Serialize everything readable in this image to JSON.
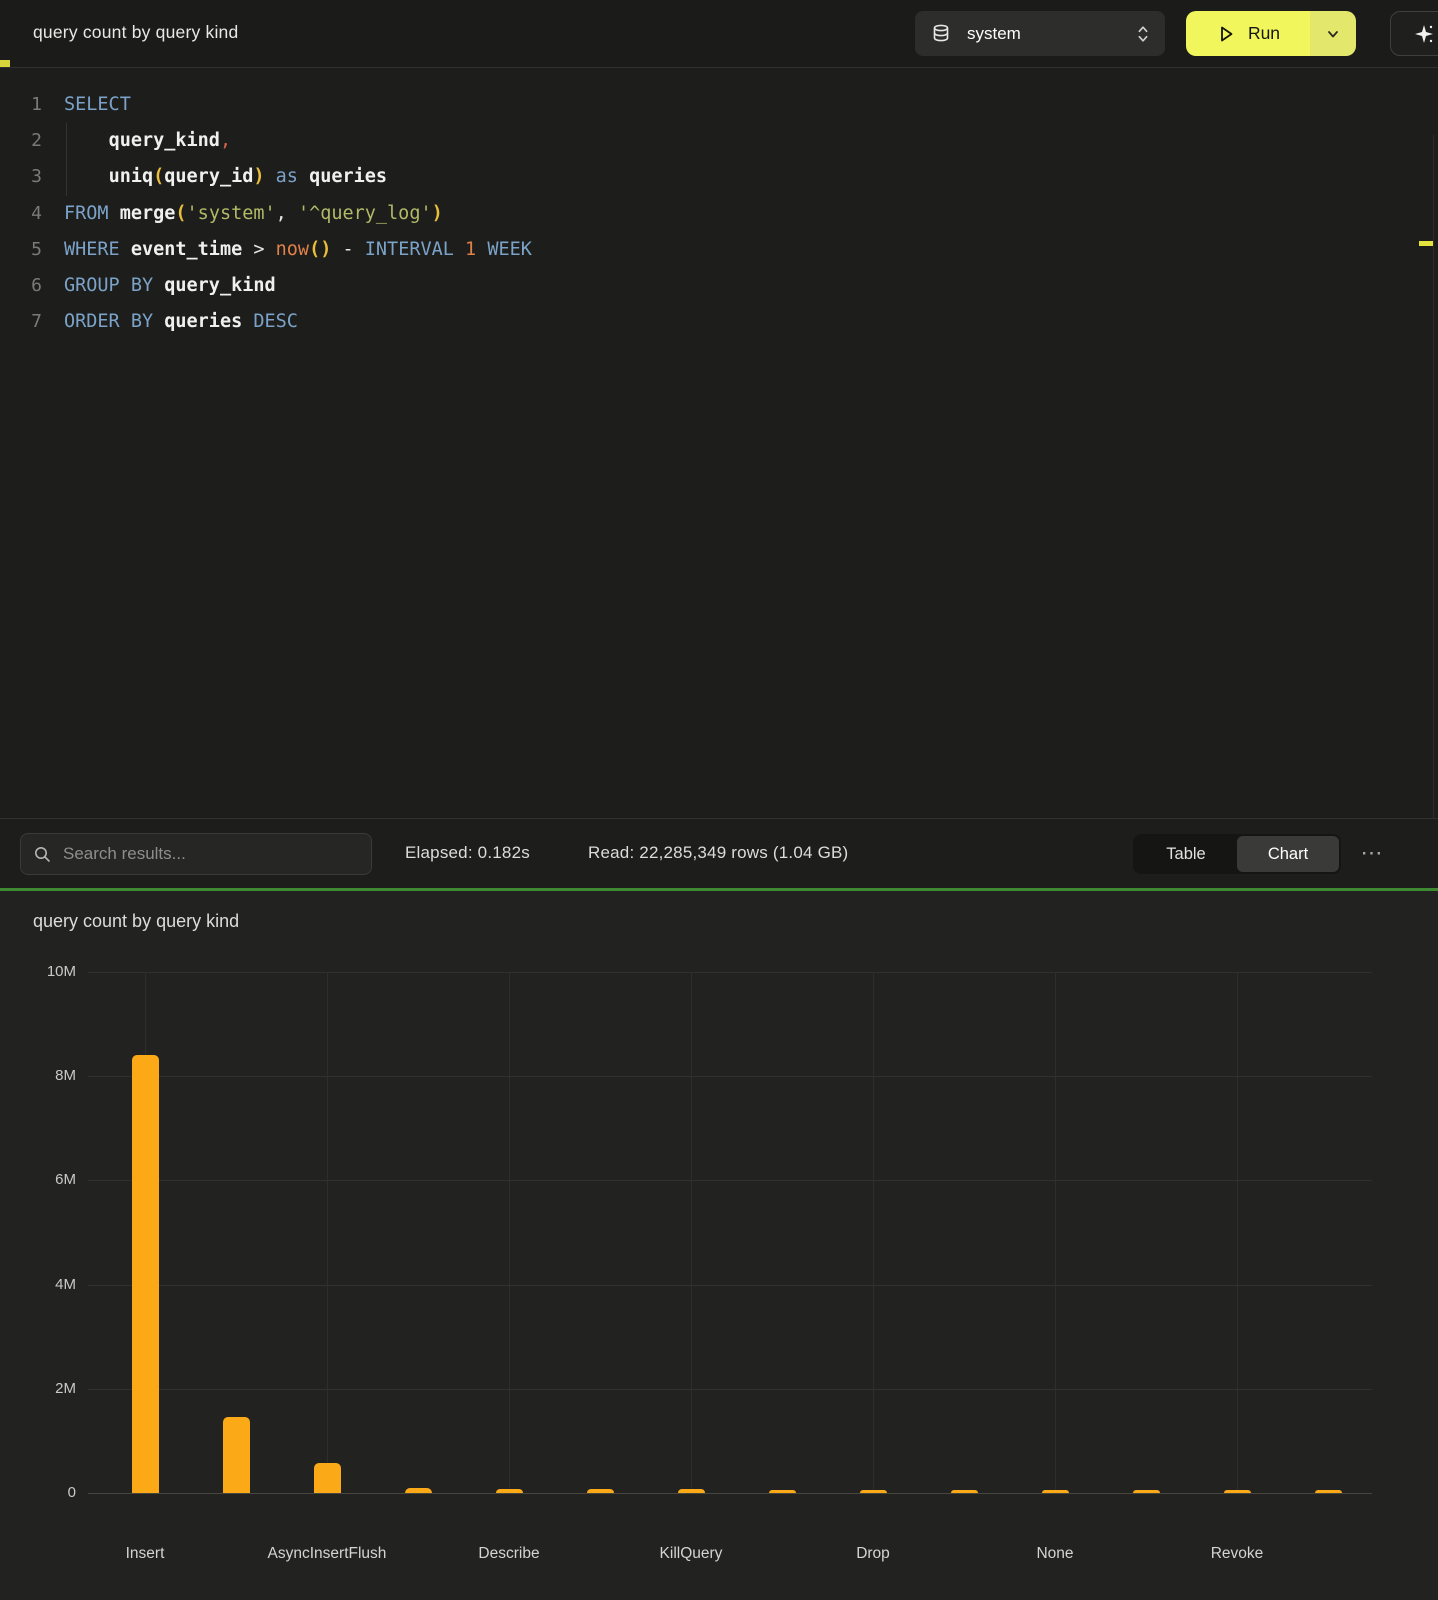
{
  "topbar": {
    "title": "query count by query kind",
    "database_selector": {
      "selected": "system"
    },
    "run_button": {
      "label": "Run"
    },
    "colors": {
      "run_main": "#f0f65c",
      "run_dropdown": "#e3e86c"
    }
  },
  "editor": {
    "lines": [
      {
        "num": "1",
        "tokens": [
          {
            "c": "kw",
            "t": "SELECT"
          }
        ]
      },
      {
        "num": "2",
        "tokens": [
          {
            "c": "w",
            "t": "    "
          },
          {
            "c": "id",
            "t": "query_kind"
          },
          {
            "c": "c",
            "t": ","
          }
        ]
      },
      {
        "num": "3",
        "tokens": [
          {
            "c": "w",
            "t": "    "
          },
          {
            "c": "id",
            "t": "uniq"
          },
          {
            "c": "p",
            "t": "("
          },
          {
            "c": "id",
            "t": "query_id"
          },
          {
            "c": "p",
            "t": ")"
          },
          {
            "c": "w",
            "t": " "
          },
          {
            "c": "kw",
            "t": "as"
          },
          {
            "c": "w",
            "t": " "
          },
          {
            "c": "id",
            "t": "queries"
          }
        ]
      },
      {
        "num": "4",
        "tokens": [
          {
            "c": "kw",
            "t": "FROM"
          },
          {
            "c": "w",
            "t": " "
          },
          {
            "c": "id",
            "t": "merge"
          },
          {
            "c": "p",
            "t": "("
          },
          {
            "c": "s",
            "t": "'system'"
          },
          {
            "c": "w",
            "t": ", "
          },
          {
            "c": "s",
            "t": "'^query_log'"
          },
          {
            "c": "p",
            "t": ")"
          }
        ]
      },
      {
        "num": "5",
        "tokens": [
          {
            "c": "kw",
            "t": "WHERE"
          },
          {
            "c": "w",
            "t": " "
          },
          {
            "c": "id",
            "t": "event_time"
          },
          {
            "c": "w",
            "t": " > "
          },
          {
            "c": "o",
            "t": "now"
          },
          {
            "c": "p",
            "t": "()"
          },
          {
            "c": "w",
            "t": " - "
          },
          {
            "c": "kw",
            "t": "INTERVAL"
          },
          {
            "c": "w",
            "t": " "
          },
          {
            "c": "o",
            "t": "1"
          },
          {
            "c": "w",
            "t": " "
          },
          {
            "c": "kw",
            "t": "WEEK"
          }
        ]
      },
      {
        "num": "6",
        "tokens": [
          {
            "c": "kw",
            "t": "GROUP BY"
          },
          {
            "c": "w",
            "t": " "
          },
          {
            "c": "id",
            "t": "query_kind"
          }
        ]
      },
      {
        "num": "7",
        "tokens": [
          {
            "c": "kw",
            "t": "ORDER BY"
          },
          {
            "c": "w",
            "t": " "
          },
          {
            "c": "id",
            "t": "queries"
          },
          {
            "c": "w",
            "t": " "
          },
          {
            "c": "kw",
            "t": "DESC"
          }
        ]
      }
    ]
  },
  "results_bar": {
    "search_placeholder": "Search results...",
    "elapsed": "Elapsed: 0.182s",
    "read": "Read: 22,285,349 rows (1.04 GB)",
    "view_toggle": {
      "options": [
        "Table",
        "Chart"
      ],
      "active": "Chart"
    },
    "more_label": "⋯"
  },
  "chart": {
    "title": "query count by query kind"
  },
  "chart_data": {
    "type": "bar",
    "title": "query count by query kind",
    "categories": [
      "Insert",
      "",
      "AsyncInsertFlush",
      "",
      "Describe",
      "",
      "KillQuery",
      "",
      "Drop",
      "",
      "None",
      "",
      "Revoke",
      ""
    ],
    "values": [
      8400000,
      1450000,
      580000,
      90000,
      80000,
      75000,
      70000,
      65000,
      65000,
      60000,
      60000,
      55000,
      55000,
      50000
    ],
    "note": "x labels shown only under every other bar; intermediate bar labels not visible in screenshot",
    "xlabel": "",
    "ylabel": "",
    "ylim": [
      0,
      10000000
    ],
    "yticks": [
      0,
      2000000,
      4000000,
      6000000,
      8000000,
      10000000
    ],
    "ytick_labels": [
      "0",
      "2M",
      "4M",
      "6M",
      "8M",
      "10M"
    ],
    "bar_color": "#fba916",
    "grid": true,
    "legend": false
  },
  "icons": {
    "database": "database-icon",
    "updown": "chevron-updown-icon",
    "play": "play-icon",
    "chevron_down": "chevron-down-icon",
    "sparkle": "sparkle-icon",
    "search": "search-icon",
    "more": "ellipsis-icon"
  },
  "colors": {
    "green_divider": "#3d8a33",
    "bar": "#fba916",
    "run_yellow": "#f0f65c",
    "keyword": "#7ba3c9",
    "string": "#b2ba68",
    "number": "#e0814a"
  }
}
